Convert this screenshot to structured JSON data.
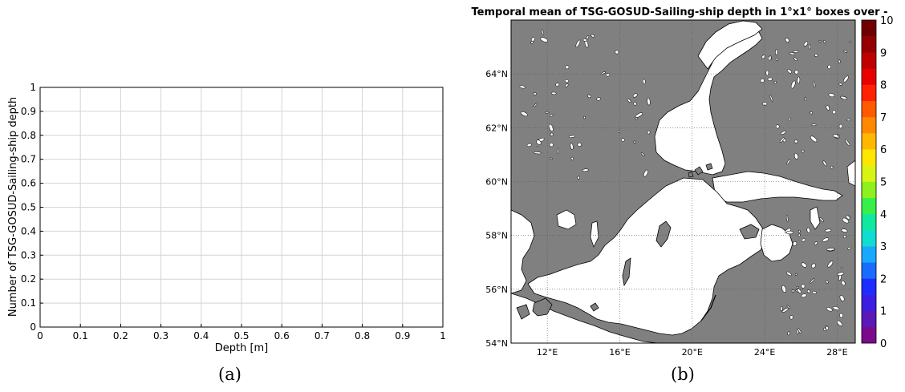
{
  "chart_data": [
    {
      "type": "histogram",
      "title": "",
      "xlabel": "Depth [m]",
      "ylabel": "Number of TSG-GOSUD-Sailing-ship depth",
      "xlim": [
        0,
        1
      ],
      "ylim": [
        0,
        1
      ],
      "xticks": [
        "0",
        "0.1",
        "0.2",
        "0.3",
        "0.4",
        "0.5",
        "0.6",
        "0.7",
        "0.8",
        "0.9",
        "1"
      ],
      "yticks": [
        "0",
        "0.1",
        "0.2",
        "0.3",
        "0.4",
        "0.5",
        "0.6",
        "0.7",
        "0.8",
        "0.9",
        "1"
      ],
      "grid": true,
      "series": []
    },
    {
      "type": "heatmap",
      "title": "Temporal mean of TSG-GOSUD-Sailing-ship depth in 1°x1° boxes over -",
      "map_region": "Baltic Sea",
      "lon_range": [
        10,
        29
      ],
      "lat_range": [
        54,
        66
      ],
      "lon_ticks": [
        "12°E",
        "16°E",
        "20°E",
        "24°E",
        "28°E"
      ],
      "lat_ticks": [
        "54°N",
        "56°N",
        "58°N",
        "60°N",
        "62°N",
        "64°N"
      ],
      "colorbar": {
        "range": [
          0,
          10
        ],
        "ticks": [
          "0",
          "1",
          "2",
          "3",
          "4",
          "5",
          "6",
          "7",
          "8",
          "9",
          "10"
        ],
        "colors": [
          "#7a0a8c",
          "#5b18b8",
          "#3a1fe0",
          "#1f2cff",
          "#1a6cff",
          "#1aa8ff",
          "#11dcd0",
          "#10e8a0",
          "#38ef4a",
          "#8ef01c",
          "#d8f414",
          "#ffe600",
          "#ffb800",
          "#ff8800",
          "#ff5a00",
          "#ff2200",
          "#e80000",
          "#bf0000",
          "#950000",
          "#700000"
        ]
      },
      "land_color": "#808080",
      "sea_color": "#ffffff",
      "grid": true,
      "values": []
    }
  ],
  "captions": {
    "a": "(a)",
    "b": "(b)"
  }
}
